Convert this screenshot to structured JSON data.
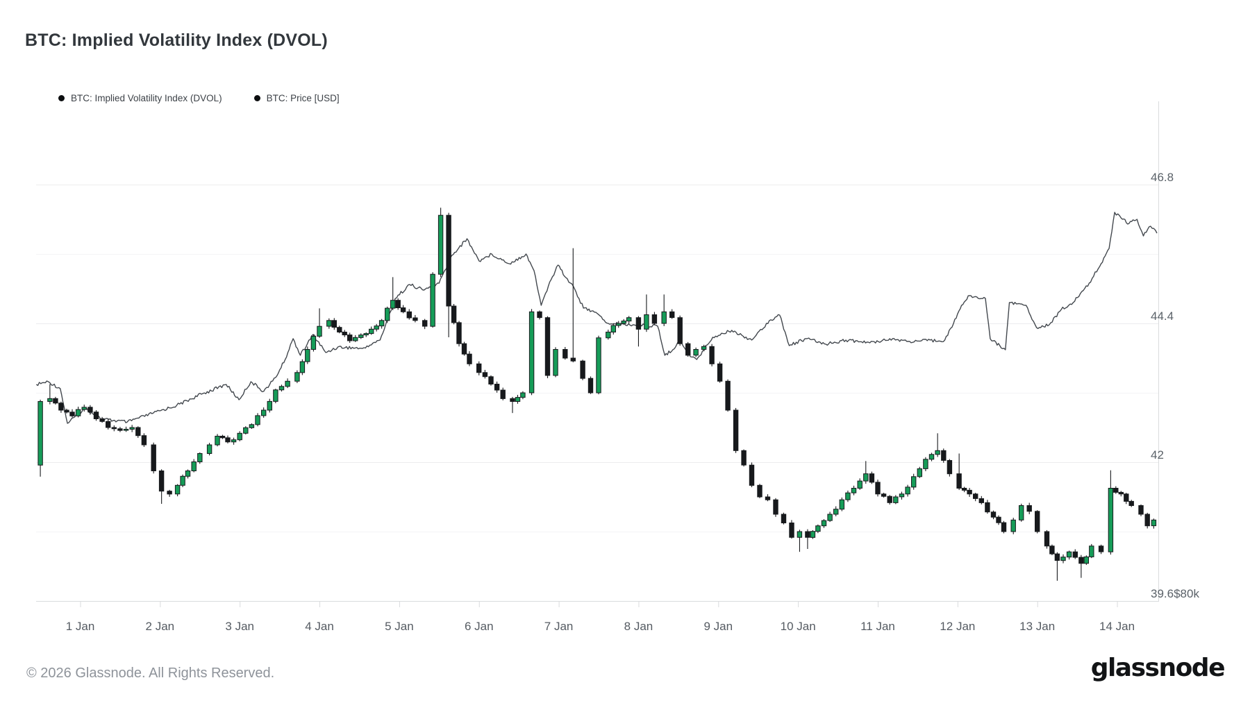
{
  "title": "BTC: Implied Volatility Index (DVOL)",
  "footer": {
    "copyright": "© 2026 Glassnode. All Rights Reserved.",
    "brand": "glassnode"
  },
  "colors": {
    "candle_up": "#169c58",
    "candle_down": "#17191c",
    "price_line": "#42474d",
    "grid_major": "#ececee",
    "grid_minor": "#f4f4f6",
    "axis_line": "#d9dbdd"
  },
  "chart_data": {
    "type": "candlestick+line",
    "title": "BTC: Implied Volatility Index (DVOL)",
    "legend_position": "top-left",
    "grid": "horizontal-only",
    "x_axis": {
      "unit": "days (January, day 1 = tick '1 Jan'; t is days after 1 Jan 00:00)",
      "tick_labels": [
        "1 Jan",
        "2 Jan",
        "3 Jan",
        "4 Jan",
        "5 Jan",
        "6 Jan",
        "7 Jan",
        "8 Jan",
        "9 Jan",
        "10 Jan",
        "11 Jan",
        "12 Jan",
        "13 Jan",
        "14 Jan"
      ],
      "tick_days": [
        0,
        1,
        2,
        3,
        4,
        5,
        6,
        7,
        8,
        9,
        10,
        11,
        12,
        13
      ],
      "range_days": [
        -0.553,
        13.525
      ]
    },
    "y_axis_dvol": {
      "side": "right",
      "tick_labels": [
        "46.8",
        "44.4",
        "42",
        "39.6"
      ],
      "tick_values": [
        46.8,
        44.4,
        42,
        39.6
      ],
      "minor_grid_values": [
        45.6,
        43.2,
        40.8
      ],
      "range": [
        39.6,
        48.24
      ]
    },
    "y_axis_price": {
      "side": "right",
      "tick_labels": [
        "$80k"
      ],
      "bottom_label": "$80k",
      "range_kusd": [
        80,
        116
      ]
    },
    "series": [
      {
        "name": "BTC: Implied Volatility Index (DVOL)",
        "type": "candlestick",
        "axis": "y_axis_dvol",
        "waypoints_format": "[t_days, close, wick_high_or_null, wick_low_or_null]",
        "waypoints": [
          [
            -0.55,
            41.95,
            null,
            null
          ],
          [
            -0.5,
            43.05,
            null,
            41.75
          ],
          [
            -0.38,
            43.1,
            43.35,
            null
          ],
          [
            -0.24,
            42.9,
            null,
            null
          ],
          [
            -0.1,
            42.8,
            null,
            null
          ],
          [
            0.05,
            42.95,
            null,
            null
          ],
          [
            0.2,
            42.75,
            null,
            null
          ],
          [
            0.35,
            42.6,
            null,
            null
          ],
          [
            0.5,
            42.55,
            null,
            null
          ],
          [
            0.65,
            42.6,
            null,
            null
          ],
          [
            0.8,
            42.3,
            null,
            null
          ],
          [
            0.92,
            41.85,
            null,
            null
          ],
          [
            1.02,
            41.5,
            null,
            41.28
          ],
          [
            1.12,
            41.45,
            null,
            null
          ],
          [
            1.22,
            41.6,
            null,
            null
          ],
          [
            1.35,
            41.85,
            null,
            null
          ],
          [
            1.5,
            42.15,
            null,
            null
          ],
          [
            1.62,
            42.3,
            null,
            null
          ],
          [
            1.72,
            42.45,
            null,
            null
          ],
          [
            1.85,
            42.35,
            null,
            null
          ],
          [
            2.0,
            42.5,
            null,
            null
          ],
          [
            2.15,
            42.65,
            null,
            null
          ],
          [
            2.3,
            42.9,
            null,
            null
          ],
          [
            2.45,
            43.25,
            null,
            null
          ],
          [
            2.6,
            43.4,
            null,
            null
          ],
          [
            2.72,
            43.55,
            null,
            null
          ],
          [
            2.85,
            43.95,
            null,
            null
          ],
          [
            3.0,
            44.35,
            44.66,
            null
          ],
          [
            3.12,
            44.45,
            null,
            null
          ],
          [
            3.25,
            44.25,
            null,
            null
          ],
          [
            3.38,
            44.1,
            null,
            null
          ],
          [
            3.52,
            44.2,
            null,
            null
          ],
          [
            3.65,
            44.3,
            null,
            null
          ],
          [
            3.78,
            44.45,
            null,
            null
          ],
          [
            3.92,
            44.8,
            45.2,
            null
          ],
          [
            4.05,
            44.6,
            null,
            null
          ],
          [
            4.2,
            44.45,
            null,
            null
          ],
          [
            4.32,
            44.35,
            null,
            null
          ],
          [
            4.42,
            45.25,
            null,
            null
          ],
          [
            4.52,
            46.27,
            46.4,
            null
          ],
          [
            4.62,
            44.7,
            null,
            44.16
          ],
          [
            4.75,
            44.05,
            null,
            null
          ],
          [
            4.88,
            43.7,
            null,
            null
          ],
          [
            5.0,
            43.55,
            null,
            null
          ],
          [
            5.15,
            43.35,
            null,
            null
          ],
          [
            5.3,
            43.1,
            null,
            null
          ],
          [
            5.42,
            43.05,
            null,
            42.85
          ],
          [
            5.55,
            43.2,
            null,
            null
          ],
          [
            5.66,
            44.6,
            null,
            null
          ],
          [
            5.76,
            44.5,
            null,
            null
          ],
          [
            5.86,
            43.5,
            null,
            null
          ],
          [
            5.96,
            43.95,
            null,
            null
          ],
          [
            6.08,
            43.8,
            null,
            null
          ],
          [
            6.18,
            43.75,
            45.7,
            null
          ],
          [
            6.3,
            43.45,
            null,
            null
          ],
          [
            6.4,
            43.2,
            null,
            null
          ],
          [
            6.5,
            44.15,
            null,
            null
          ],
          [
            6.62,
            44.25,
            null,
            null
          ],
          [
            6.75,
            44.4,
            null,
            null
          ],
          [
            6.88,
            44.5,
            null,
            null
          ],
          [
            7.0,
            44.3,
            null,
            44.0
          ],
          [
            7.1,
            44.55,
            44.9,
            null
          ],
          [
            7.2,
            44.4,
            null,
            null
          ],
          [
            7.32,
            44.6,
            44.9,
            null
          ],
          [
            7.42,
            44.5,
            null,
            null
          ],
          [
            7.52,
            44.05,
            null,
            null
          ],
          [
            7.62,
            43.85,
            null,
            null
          ],
          [
            7.72,
            43.95,
            null,
            null
          ],
          [
            7.82,
            44.0,
            null,
            null
          ],
          [
            7.92,
            43.7,
            null,
            null
          ],
          [
            8.02,
            43.4,
            null,
            null
          ],
          [
            8.12,
            42.9,
            null,
            null
          ],
          [
            8.22,
            42.2,
            null,
            null
          ],
          [
            8.32,
            41.95,
            null,
            null
          ],
          [
            8.42,
            41.6,
            null,
            null
          ],
          [
            8.52,
            41.4,
            null,
            null
          ],
          [
            8.62,
            41.35,
            null,
            null
          ],
          [
            8.72,
            41.1,
            null,
            null
          ],
          [
            8.82,
            40.95,
            null,
            null
          ],
          [
            8.92,
            40.7,
            null,
            null
          ],
          [
            9.02,
            40.8,
            null,
            40.45
          ],
          [
            9.12,
            40.7,
            null,
            40.5
          ],
          [
            9.25,
            40.9,
            null,
            null
          ],
          [
            9.4,
            41.1,
            null,
            null
          ],
          [
            9.55,
            41.35,
            null,
            null
          ],
          [
            9.7,
            41.55,
            null,
            null
          ],
          [
            9.85,
            41.8,
            42.02,
            null
          ],
          [
            10.0,
            41.45,
            null,
            null
          ],
          [
            10.15,
            41.3,
            null,
            null
          ],
          [
            10.3,
            41.45,
            null,
            null
          ],
          [
            10.45,
            41.75,
            null,
            null
          ],
          [
            10.6,
            42.05,
            null,
            null
          ],
          [
            10.75,
            42.2,
            42.5,
            null
          ],
          [
            10.9,
            41.8,
            null,
            null
          ],
          [
            11.02,
            41.55,
            42.15,
            null
          ],
          [
            11.15,
            41.45,
            null,
            null
          ],
          [
            11.3,
            41.3,
            null,
            null
          ],
          [
            11.45,
            41.05,
            null,
            null
          ],
          [
            11.58,
            40.8,
            null,
            null
          ],
          [
            11.7,
            41.0,
            null,
            null
          ],
          [
            11.8,
            41.25,
            null,
            null
          ],
          [
            11.9,
            41.15,
            null,
            null
          ],
          [
            12.0,
            40.8,
            null,
            null
          ],
          [
            12.12,
            40.55,
            null,
            null
          ],
          [
            12.25,
            40.3,
            null,
            39.95
          ],
          [
            12.4,
            40.45,
            null,
            null
          ],
          [
            12.55,
            40.25,
            null,
            40.0
          ],
          [
            12.68,
            40.55,
            null,
            null
          ],
          [
            12.8,
            40.45,
            null,
            null
          ],
          [
            12.92,
            41.55,
            41.86,
            null
          ],
          [
            13.05,
            41.45,
            null,
            null
          ],
          [
            13.18,
            41.25,
            null,
            null
          ],
          [
            13.3,
            41.1,
            null,
            null
          ],
          [
            13.38,
            40.9,
            null,
            null
          ],
          [
            13.46,
            41.0,
            null,
            null
          ]
        ]
      },
      {
        "name": "BTC: Price [USD]",
        "type": "line",
        "axis": "y_axis_price",
        "points_format": "[t_days, price_thousand_usd]",
        "points": [
          [
            -0.55,
            95.6
          ],
          [
            -0.4,
            95.8
          ],
          [
            -0.25,
            95.3
          ],
          [
            -0.16,
            92.8
          ],
          [
            0.06,
            93.9
          ],
          [
            0.27,
            93.1
          ],
          [
            0.59,
            92.9
          ],
          [
            0.9,
            93.5
          ],
          [
            1.21,
            94.1
          ],
          [
            1.52,
            94.9
          ],
          [
            1.83,
            95.6
          ],
          [
            1.99,
            94.5
          ],
          [
            2.14,
            95.8
          ],
          [
            2.3,
            95.1
          ],
          [
            2.45,
            96.1
          ],
          [
            2.57,
            97.4
          ],
          [
            2.67,
            98.9
          ],
          [
            2.76,
            97.7
          ],
          [
            2.92,
            99.2
          ],
          [
            3.08,
            97.9
          ],
          [
            3.23,
            98.3
          ],
          [
            3.54,
            98.2
          ],
          [
            3.76,
            98.8
          ],
          [
            3.95,
            101.8
          ],
          [
            4.13,
            102.8
          ],
          [
            4.31,
            102.4
          ],
          [
            4.5,
            102.9
          ],
          [
            4.66,
            104.9
          ],
          [
            4.85,
            106.1
          ],
          [
            5.0,
            104.5
          ],
          [
            5.16,
            105.0
          ],
          [
            5.38,
            104.3
          ],
          [
            5.59,
            105.0
          ],
          [
            5.69,
            103.8
          ],
          [
            5.78,
            101.3
          ],
          [
            5.87,
            102.7
          ],
          [
            5.99,
            104.2
          ],
          [
            6.09,
            103.3
          ],
          [
            6.18,
            102.7
          ],
          [
            6.31,
            101.1
          ],
          [
            6.43,
            100.9
          ],
          [
            6.62,
            100.0
          ],
          [
            6.93,
            99.9
          ],
          [
            7.24,
            99.8
          ],
          [
            7.33,
            97.7
          ],
          [
            7.43,
            98.1
          ],
          [
            7.52,
            98.8
          ],
          [
            7.65,
            97.6
          ],
          [
            7.73,
            97.4
          ],
          [
            7.93,
            99.0
          ],
          [
            8.17,
            99.5
          ],
          [
            8.42,
            98.8
          ],
          [
            8.64,
            100.2
          ],
          [
            8.77,
            100.6
          ],
          [
            8.89,
            98.4
          ],
          [
            9.1,
            98.9
          ],
          [
            9.35,
            98.5
          ],
          [
            9.6,
            98.8
          ],
          [
            9.9,
            98.6
          ],
          [
            10.15,
            98.9
          ],
          [
            10.4,
            98.7
          ],
          [
            10.84,
            98.8
          ],
          [
            10.95,
            100.0
          ],
          [
            11.05,
            101.3
          ],
          [
            11.15,
            102.0
          ],
          [
            11.35,
            101.8
          ],
          [
            11.41,
            98.9
          ],
          [
            11.6,
            98.1
          ],
          [
            11.65,
            101.5
          ],
          [
            11.86,
            101.3
          ],
          [
            11.99,
            99.7
          ],
          [
            12.15,
            99.9
          ],
          [
            12.3,
            101.0
          ],
          [
            12.45,
            101.5
          ],
          [
            12.65,
            102.9
          ],
          [
            12.8,
            104.3
          ],
          [
            12.9,
            105.4
          ],
          [
            12.97,
            108.0
          ],
          [
            13.05,
            107.6
          ],
          [
            13.15,
            107.2
          ],
          [
            13.25,
            107.5
          ],
          [
            13.33,
            106.3
          ],
          [
            13.42,
            107.0
          ],
          [
            13.5,
            106.5
          ]
        ]
      }
    ]
  }
}
